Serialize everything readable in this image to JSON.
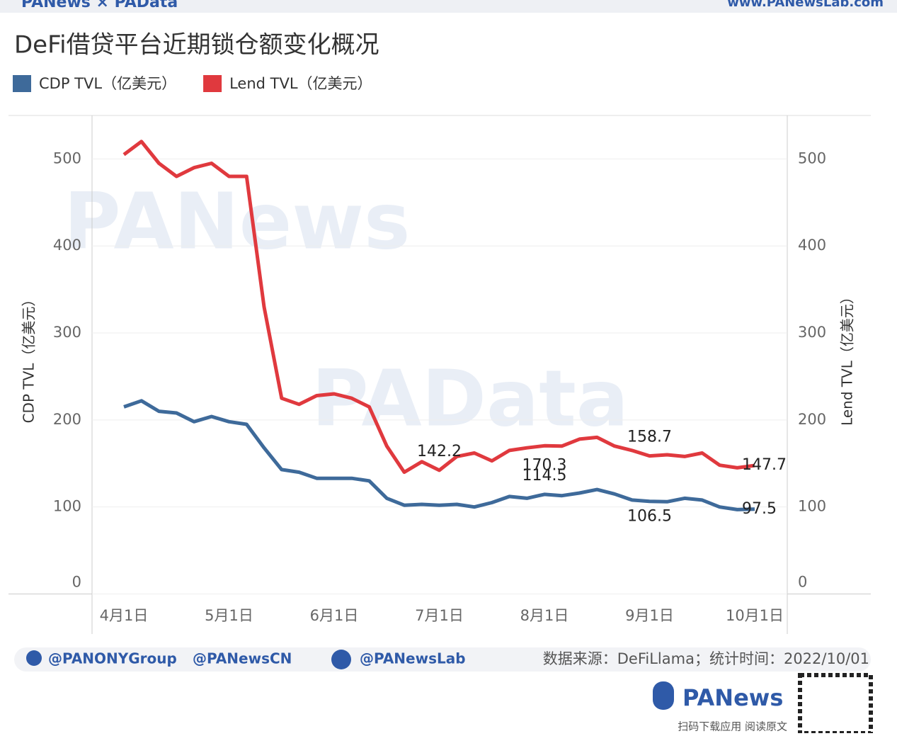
{
  "header": {
    "brand": "PANews × PAData",
    "url": "www.PANewsLab.com"
  },
  "chart_data": {
    "type": "line",
    "title": "DeFi借贷平台近期锁仓额变化概况",
    "watermarks": [
      "PANews",
      "PAData"
    ],
    "y_label": "CDP TVL（亿美元）",
    "y2_label": "Lend TVL（亿美元）",
    "categories": [
      "4月1日",
      null,
      null,
      null,
      null,
      null,
      "5月1日",
      null,
      null,
      null,
      null,
      null,
      "6月1日",
      null,
      null,
      null,
      null,
      null,
      "7月1日",
      null,
      null,
      null,
      null,
      null,
      "8月1日",
      null,
      null,
      null,
      null,
      null,
      "9月1日",
      null,
      null,
      null,
      null,
      null,
      "10月1日"
    ],
    "series": [
      {
        "name": "CDP TVL（亿美元）",
        "color": "#3e6a9a",
        "values": [
          215,
          222,
          210,
          208,
          198,
          204,
          198,
          195,
          168,
          143,
          140,
          133,
          133,
          133,
          130,
          110,
          102,
          103,
          102,
          103,
          100,
          105,
          112,
          110,
          114.5,
          113,
          116,
          120,
          115,
          108,
          106.5,
          106,
          110,
          108,
          100,
          97,
          97.5
        ],
        "value_labels": [
          null,
          null,
          null,
          null,
          null,
          null,
          null,
          null,
          null,
          null,
          null,
          null,
          null,
          null,
          null,
          null,
          null,
          null,
          null,
          null,
          null,
          null,
          null,
          null,
          "114.5",
          null,
          null,
          null,
          null,
          null,
          "106.5",
          null,
          null,
          null,
          null,
          null,
          "97.5"
        ]
      },
      {
        "name": "Lend TVL（亿美元）",
        "color": "#e0393e",
        "axis": "y2",
        "values": [
          505,
          520,
          495,
          480,
          490,
          495,
          480,
          480,
          330,
          225,
          218,
          228,
          230,
          225,
          215,
          170,
          140,
          152,
          142.2,
          158,
          162,
          153,
          165,
          168,
          170.3,
          170,
          178,
          180,
          170,
          165,
          158.7,
          160,
          158,
          162,
          148,
          145,
          147.7
        ],
        "value_labels": [
          null,
          null,
          null,
          null,
          null,
          null,
          null,
          null,
          null,
          null,
          null,
          null,
          null,
          null,
          null,
          null,
          null,
          null,
          "142.2",
          null,
          null,
          null,
          null,
          null,
          "170.3",
          null,
          null,
          null,
          null,
          null,
          "158.7",
          null,
          null,
          null,
          null,
          null,
          "147.7"
        ]
      }
    ],
    "ylim": [
      0,
      550
    ],
    "yticks": [
      0,
      100,
      200,
      300,
      400,
      500
    ],
    "y2lim": [
      0,
      550
    ],
    "y2ticks": [
      0,
      100,
      200,
      300,
      400,
      500
    ],
    "grid": true
  },
  "footer": {
    "twitter1": "@PANONYGroup",
    "twitter2": "@PANewsCN",
    "facebook": "@PANewsLab",
    "source": "数据来源：DeFiLlama；统计时间：2022/10/01",
    "logo": "PANews",
    "qr_caption": "扫码下载应用 阅读原文"
  }
}
